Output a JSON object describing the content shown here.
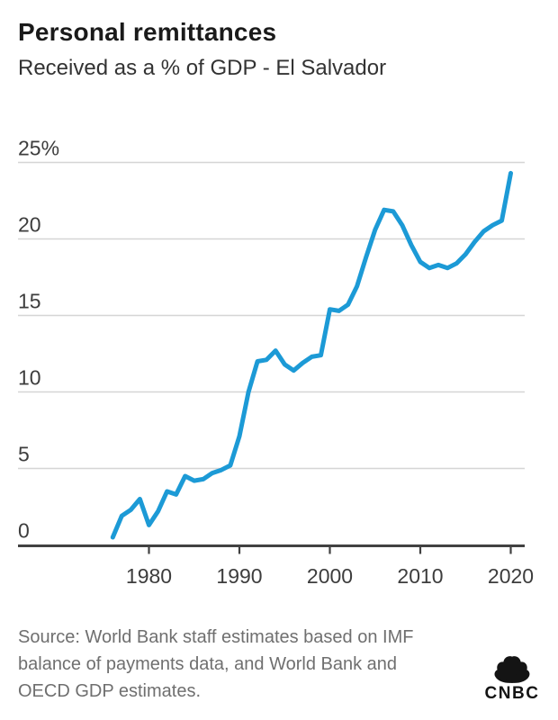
{
  "header": {
    "title": "Personal remittances",
    "subtitle": "Received as a % of GDP - El Salvador"
  },
  "chart_data": {
    "type": "line",
    "title": "Personal remittances",
    "subtitle": "Received as a % of GDP - El Salvador",
    "series": [
      {
        "name": "El Salvador",
        "x": [
          1976,
          1977,
          1978,
          1979,
          1980,
          1981,
          1982,
          1983,
          1984,
          1985,
          1986,
          1987,
          1988,
          1989,
          1990,
          1991,
          1992,
          1993,
          1994,
          1995,
          1996,
          1997,
          1998,
          1999,
          2000,
          2001,
          2002,
          2003,
          2004,
          2005,
          2006,
          2007,
          2008,
          2009,
          2010,
          2011,
          2012,
          2013,
          2014,
          2015,
          2016,
          2017,
          2018,
          2019,
          2020
        ],
        "values": [
          0.5,
          1.9,
          2.3,
          3.0,
          1.3,
          2.2,
          3.5,
          3.3,
          4.5,
          4.2,
          4.3,
          4.7,
          4.9,
          5.2,
          7.1,
          10.0,
          12.0,
          12.1,
          12.7,
          11.8,
          11.4,
          11.9,
          12.3,
          12.4,
          15.4,
          15.3,
          15.7,
          16.9,
          18.8,
          20.6,
          21.9,
          21.8,
          20.9,
          19.6,
          18.5,
          18.1,
          18.3,
          18.1,
          18.4,
          19.0,
          19.8,
          20.5,
          20.9,
          21.2,
          24.3
        ]
      }
    ],
    "xlabel": "",
    "ylabel": "",
    "xlim": [
      1975.5,
      2021.5
    ],
    "ylim": [
      0,
      25
    ],
    "yticks": {
      "values": [
        25,
        20,
        15,
        10,
        5,
        0
      ],
      "labels": [
        "25%",
        "20",
        "15",
        "10",
        "5",
        "0"
      ]
    },
    "xticks": {
      "values": [
        1980,
        1990,
        2000,
        2010,
        2020
      ],
      "labels": [
        "1980",
        "1990",
        "2000",
        "2010",
        "2020"
      ]
    },
    "grid": "horizontal",
    "legend": "none",
    "line_color": "#1c9ad6"
  },
  "footer": {
    "source": "Source: World Bank staff estimates based on IMF\nbalance of payments data, and World Bank and\nOECD GDP estimates.",
    "logo_text": "CNBC"
  },
  "colors": {
    "accent_line": "#1c9ad6",
    "grid": "#d5d5d5",
    "axis": "#414141",
    "title_text": "#1a1a1a",
    "subtitle_text": "#333333",
    "tick_text": "#3d3d3d",
    "source_text": "#6f6f6f",
    "logo": "#141414",
    "background": "#ffffff"
  }
}
